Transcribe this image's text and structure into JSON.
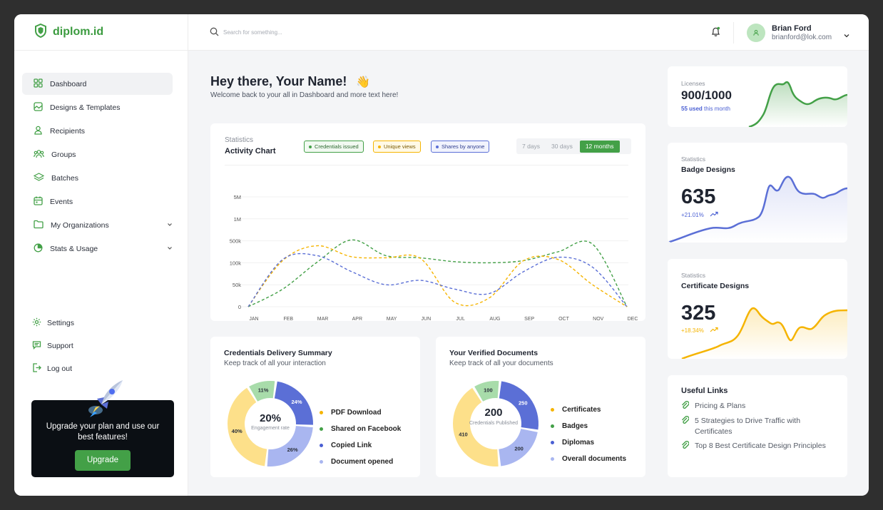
{
  "brand": {
    "name": "diplom.id"
  },
  "search": {
    "placeholder": "Search for something..."
  },
  "user": {
    "name": "Brian Ford",
    "email": "brianford@lok.com"
  },
  "sidebar": {
    "items": [
      {
        "label": "Dashboard",
        "icon": "grid-icon"
      },
      {
        "label": "Designs & Templates",
        "icon": "image-icon"
      },
      {
        "label": "Recipients",
        "icon": "user-icon"
      },
      {
        "label": "Groups",
        "icon": "users-icon"
      },
      {
        "label": "Batches",
        "icon": "layers-icon"
      },
      {
        "label": "Events",
        "icon": "calendar-icon"
      },
      {
        "label": "My Organizations",
        "icon": "folder-icon"
      },
      {
        "label": "Stats & Usage",
        "icon": "pie-icon"
      }
    ],
    "bottom": [
      {
        "label": "Settings",
        "icon": "gear-icon"
      },
      {
        "label": "Support",
        "icon": "chat-icon"
      },
      {
        "label": "Log out",
        "icon": "logout-icon"
      }
    ],
    "upgrade": {
      "text": "Upgrade your plan and use our best features!",
      "button": "Upgrade"
    }
  },
  "greeting": {
    "title": "Hey there, Your Name!",
    "emoji": "👋",
    "subtitle": "Welcome back to your all in Dashboard and more text here!"
  },
  "activity": {
    "label": "Statistics",
    "title": "Activity Chart",
    "legend": [
      "Credentials issued",
      "Unique views",
      "Shares by anyone"
    ],
    "ranges": [
      "7 days",
      "30 days",
      "12 months"
    ],
    "active_range": "12 months"
  },
  "chart_data": {
    "type": "line",
    "categories": [
      "JAN",
      "FEB",
      "MAR",
      "APR",
      "MAY",
      "JUN",
      "JUL",
      "AUG",
      "SEP",
      "OCT",
      "NOV",
      "DEC"
    ],
    "y_ticks": [
      "0",
      "50k",
      "100k",
      "500k",
      "1M",
      "5M"
    ],
    "series": [
      {
        "name": "Credentials issued",
        "color": "#43a047",
        "values": [
          0,
          40,
          110,
          520,
          230,
          190,
          120,
          100,
          140,
          300,
          440,
          0
        ]
      },
      {
        "name": "Unique views",
        "color": "#f5b400",
        "values": [
          0,
          140,
          410,
          210,
          190,
          180,
          10,
          20,
          140,
          160,
          50,
          0
        ]
      },
      {
        "name": "Shares by anyone",
        "color": "#5b6fd6",
        "values": [
          0,
          160,
          230,
          80,
          50,
          60,
          40,
          30,
          80,
          200,
          90,
          0
        ]
      }
    ],
    "grid": true,
    "legend_position": "top"
  },
  "delivery": {
    "title": "Credentials Delivery Summary",
    "subtitle": "Keep track of all your interaction",
    "center_value": "20%",
    "center_label": "Engagement rate",
    "segments": [
      {
        "label": "11%",
        "value": 11,
        "color": "#a8dcaa"
      },
      {
        "label": "24%",
        "value": 24,
        "color": "#5b6fd6"
      },
      {
        "label": "26%",
        "value": 26,
        "color": "#a9b6f0"
      },
      {
        "label": "40%",
        "value": 40,
        "color": "#fde08a"
      }
    ],
    "legend": [
      {
        "label": "PDF Download",
        "color": "#f5b400"
      },
      {
        "label": "Shared on Facebook",
        "color": "#43a047"
      },
      {
        "label": "Copied Link",
        "color": "#4a5fd3"
      },
      {
        "label": "Document opened",
        "color": "#a9b6f0"
      }
    ]
  },
  "verified": {
    "title": "Your Verified Documents",
    "subtitle": "Keep track of all your documents",
    "center_value": "200",
    "center_label": "Credentials Published",
    "segments": [
      {
        "label": "100",
        "value": 100,
        "color": "#a8dcaa"
      },
      {
        "label": "250",
        "value": 250,
        "color": "#5b6fd6"
      },
      {
        "label": "200",
        "value": 200,
        "color": "#a9b6f0"
      },
      {
        "label": "410",
        "value": 410,
        "color": "#fde08a"
      }
    ],
    "legend": [
      {
        "label": "Certificates",
        "color": "#f5b400"
      },
      {
        "label": "Badges",
        "color": "#43a047"
      },
      {
        "label": "Diplomas",
        "color": "#4a5fd3"
      },
      {
        "label": "Overall documents",
        "color": "#a9b6f0"
      }
    ]
  },
  "licenses": {
    "label": "Licenses",
    "value": "900/1000",
    "used_count": "55 used",
    "used_suffix": "this month"
  },
  "badge": {
    "label": "Statistics",
    "title": "Badge Designs",
    "value": "635",
    "change": "+21.01%"
  },
  "certificate": {
    "label": "Statistics",
    "title": "Certificate Designs",
    "value": "325",
    "change": "+18.34%"
  },
  "links": {
    "title": "Useful Links",
    "items": [
      "Pricing & Plans",
      "5 Strategies to Drive Traffic with Certificates",
      "Top 8 Best Certificate Design Principles"
    ]
  },
  "colors": {
    "accent": "#43a047",
    "blue": "#5b6fd6",
    "yellow": "#f5b400"
  }
}
